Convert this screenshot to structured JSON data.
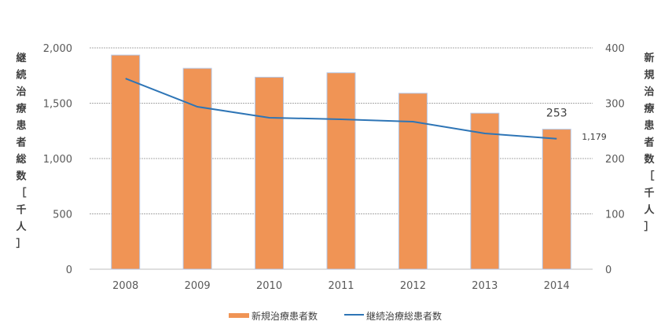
{
  "chart_data": {
    "type": "bar+line",
    "categories": [
      "2008",
      "2009",
      "2010",
      "2011",
      "2012",
      "2013",
      "2014"
    ],
    "series": [
      {
        "name": "新規治療患者数",
        "type": "bar",
        "axis": "right",
        "color": "#F09455",
        "values": [
          387,
          363,
          347,
          355,
          318,
          282,
          253
        ]
      },
      {
        "name": "継続治療総患者数",
        "type": "line",
        "axis": "left",
        "color": "#2E75B6",
        "values": [
          1723,
          1468,
          1369,
          1355,
          1333,
          1227,
          1179
        ]
      }
    ],
    "data_labels": [
      {
        "series": 0,
        "index": 6,
        "text": "253"
      },
      {
        "series": 1,
        "index": 6,
        "text": "1,179"
      }
    ],
    "ylabel_left": [
      "継",
      "続",
      "治",
      "療",
      "患",
      "者",
      "総",
      "数",
      "［",
      "千",
      "人",
      "］"
    ],
    "ylabel_right": [
      "新",
      "規",
      "治",
      "療",
      "患",
      "者",
      "数",
      "［",
      "千",
      "人",
      "］"
    ],
    "ylim_left": [
      0,
      2000
    ],
    "ylim_right": [
      0,
      400
    ],
    "yticks_left": [
      "0",
      "500",
      "1,000",
      "1,500",
      "2,000"
    ],
    "yticks_right": [
      "0",
      "100",
      "200",
      "300",
      "400"
    ],
    "grid": true,
    "legend": "bottom-center"
  }
}
